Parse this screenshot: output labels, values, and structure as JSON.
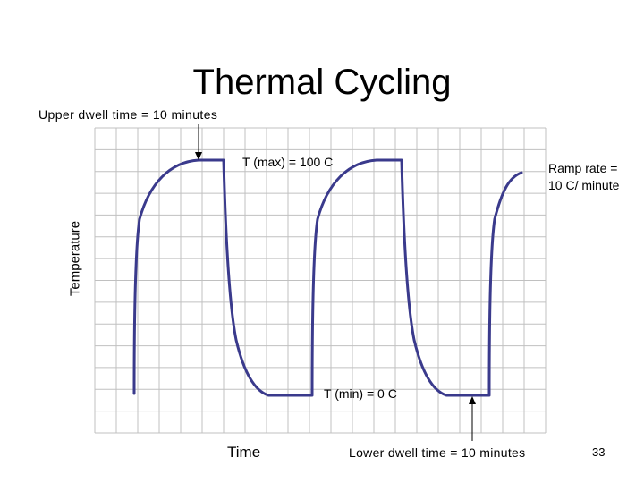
{
  "title": "Thermal Cycling",
  "labels": {
    "upper_dwell": "Upper dwell time = 10 minutes",
    "t_max": "T (max) = 100 C",
    "ramp_line1": "Ramp rate =",
    "ramp_line2": "10 C/ minute",
    "t_min": "T (min) = 0 C",
    "lower_dwell": "Lower dwell time = 10 minutes",
    "x_axis": "Time",
    "y_axis": "Temperature"
  },
  "page_number": "33",
  "colors": {
    "curve": "#3a3a8c",
    "grid": "#c0c0c0",
    "arrow": "#000000"
  }
}
